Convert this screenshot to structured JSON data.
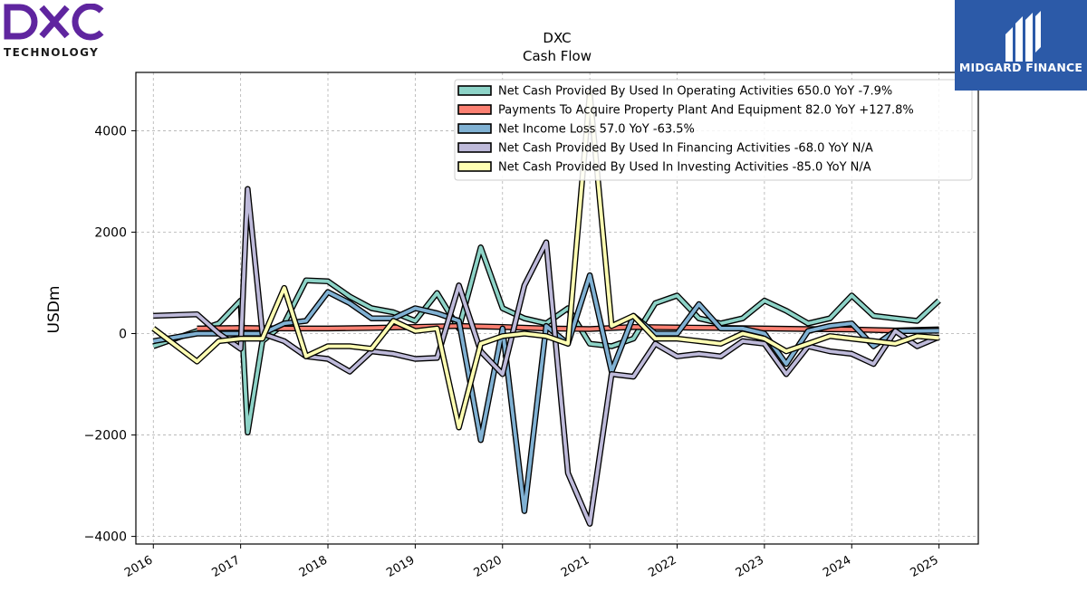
{
  "brand": {
    "company_logo_name": "DXC",
    "company_logo_sub": "TECHNOLOGY",
    "company_logo_color": "#5f259f",
    "watermark_name": "MIDGARD FINANCE",
    "watermark_color": "#2c5aa8"
  },
  "chart_data": {
    "type": "line",
    "title": "DXC",
    "subtitle": "Cash Flow",
    "xlabel": "",
    "ylabel": "USDm",
    "xlim": [
      2015.8,
      2025.45
    ],
    "ylim": [
      -4150,
      5150
    ],
    "x_ticks": [
      2016,
      2017,
      2018,
      2019,
      2020,
      2021,
      2022,
      2023,
      2024,
      2025
    ],
    "x_tick_labels": [
      "2016",
      "2017",
      "2018",
      "2019",
      "2020",
      "2021",
      "2022",
      "2023",
      "2024",
      "2025"
    ],
    "y_ticks": [
      -4000,
      -2000,
      0,
      2000,
      4000
    ],
    "y_tick_labels": [
      "−4000",
      "−2000",
      "0",
      "2000",
      "4000"
    ],
    "grid": true,
    "legend_position": "top-right",
    "series": [
      {
        "name": "Net Cash Provided By Used In Operating Activities  650.0 YoY -7.9%",
        "color": "#8dd3c7",
        "points": [
          [
            2016.0,
            -250
          ],
          [
            2016.5,
            50
          ],
          [
            2016.75,
            200
          ],
          [
            2017.0,
            650
          ],
          [
            2017.08,
            -1950
          ],
          [
            2017.25,
            -150
          ],
          [
            2017.5,
            200
          ],
          [
            2017.75,
            1050
          ],
          [
            2018.0,
            1030
          ],
          [
            2018.25,
            730
          ],
          [
            2018.5,
            500
          ],
          [
            2018.75,
            420
          ],
          [
            2019.0,
            250
          ],
          [
            2019.25,
            800
          ],
          [
            2019.5,
            100
          ],
          [
            2019.75,
            1700
          ],
          [
            2020.0,
            500
          ],
          [
            2020.25,
            300
          ],
          [
            2020.5,
            200
          ],
          [
            2020.75,
            500
          ],
          [
            2021.0,
            -200
          ],
          [
            2021.25,
            -250
          ],
          [
            2021.5,
            -100
          ],
          [
            2021.75,
            600
          ],
          [
            2022.0,
            750
          ],
          [
            2022.25,
            300
          ],
          [
            2022.5,
            200
          ],
          [
            2022.75,
            300
          ],
          [
            2023.0,
            650
          ],
          [
            2023.25,
            450
          ],
          [
            2023.5,
            200
          ],
          [
            2023.75,
            300
          ],
          [
            2024.0,
            750
          ],
          [
            2024.25,
            350
          ],
          [
            2024.5,
            300
          ],
          [
            2024.75,
            250
          ],
          [
            2025.0,
            650
          ]
        ]
      },
      {
        "name": "Payments To Acquire Property Plant And Equipment  82.0 YoY +127.8%",
        "color": "#fb8072",
        "points": [
          [
            2016.5,
            100
          ],
          [
            2017.0,
            110
          ],
          [
            2017.5,
            100
          ],
          [
            2018.0,
            100
          ],
          [
            2018.5,
            110
          ],
          [
            2019.0,
            130
          ],
          [
            2019.5,
            150
          ],
          [
            2020.0,
            130
          ],
          [
            2020.5,
            100
          ],
          [
            2021.0,
            90
          ],
          [
            2021.5,
            130
          ],
          [
            2022.0,
            120
          ],
          [
            2022.5,
            110
          ],
          [
            2023.0,
            100
          ],
          [
            2023.5,
            90
          ],
          [
            2024.0,
            80
          ],
          [
            2024.5,
            60
          ],
          [
            2025.0,
            82
          ]
        ]
      },
      {
        "name": "Net Income Loss  57.0 YoY -63.5%",
        "color": "#80b1d3",
        "points": [
          [
            2016.0,
            -150
          ],
          [
            2016.5,
            0
          ],
          [
            2016.75,
            0
          ],
          [
            2017.0,
            0
          ],
          [
            2017.25,
            0
          ],
          [
            2017.5,
            200
          ],
          [
            2017.75,
            250
          ],
          [
            2018.0,
            820
          ],
          [
            2018.25,
            600
          ],
          [
            2018.5,
            300
          ],
          [
            2018.75,
            300
          ],
          [
            2019.0,
            500
          ],
          [
            2019.25,
            400
          ],
          [
            2019.5,
            250
          ],
          [
            2019.75,
            -2100
          ],
          [
            2020.0,
            100
          ],
          [
            2020.25,
            -3500
          ],
          [
            2020.5,
            150
          ],
          [
            2020.75,
            -200
          ],
          [
            2021.0,
            1150
          ],
          [
            2021.25,
            -750
          ],
          [
            2021.5,
            350
          ],
          [
            2021.75,
            0
          ],
          [
            2022.0,
            0
          ],
          [
            2022.25,
            580
          ],
          [
            2022.5,
            100
          ],
          [
            2022.75,
            100
          ],
          [
            2023.0,
            0
          ],
          [
            2023.25,
            -600
          ],
          [
            2023.5,
            50
          ],
          [
            2023.75,
            150
          ],
          [
            2024.0,
            200
          ],
          [
            2024.25,
            -250
          ],
          [
            2024.5,
            50
          ],
          [
            2024.75,
            50
          ],
          [
            2025.0,
            57
          ]
        ]
      },
      {
        "name": "Net Cash Provided By Used In Financing Activities  -68.0 YoY N/A",
        "color": "#bebada",
        "points": [
          [
            2016.0,
            350
          ],
          [
            2016.5,
            380
          ],
          [
            2016.75,
            0
          ],
          [
            2017.0,
            -300
          ],
          [
            2017.08,
            2850
          ],
          [
            2017.25,
            0
          ],
          [
            2017.5,
            -150
          ],
          [
            2017.75,
            -450
          ],
          [
            2018.0,
            -500
          ],
          [
            2018.25,
            -750
          ],
          [
            2018.5,
            -350
          ],
          [
            2018.75,
            -400
          ],
          [
            2019.0,
            -500
          ],
          [
            2019.25,
            -480
          ],
          [
            2019.5,
            950
          ],
          [
            2019.75,
            -350
          ],
          [
            2020.0,
            -800
          ],
          [
            2020.25,
            950
          ],
          [
            2020.5,
            1800
          ],
          [
            2020.75,
            -2750
          ],
          [
            2021.0,
            -3750
          ],
          [
            2021.25,
            -800
          ],
          [
            2021.5,
            -850
          ],
          [
            2021.75,
            -200
          ],
          [
            2022.0,
            -450
          ],
          [
            2022.25,
            -400
          ],
          [
            2022.5,
            -450
          ],
          [
            2022.75,
            -150
          ],
          [
            2023.0,
            -200
          ],
          [
            2023.25,
            -800
          ],
          [
            2023.5,
            -250
          ],
          [
            2023.75,
            -350
          ],
          [
            2024.0,
            -400
          ],
          [
            2024.25,
            -600
          ],
          [
            2024.5,
            50
          ],
          [
            2024.75,
            -250
          ],
          [
            2025.0,
            -68
          ]
        ]
      },
      {
        "name": "Net Cash Provided By Used In Investing Activities  -85.0 YoY N/A",
        "color": "#ffffb3",
        "points": [
          [
            2016.0,
            100
          ],
          [
            2016.5,
            -550
          ],
          [
            2016.75,
            -150
          ],
          [
            2017.0,
            -100
          ],
          [
            2017.25,
            -100
          ],
          [
            2017.5,
            900
          ],
          [
            2017.75,
            -450
          ],
          [
            2018.0,
            -250
          ],
          [
            2018.25,
            -250
          ],
          [
            2018.5,
            -300
          ],
          [
            2018.75,
            250
          ],
          [
            2019.0,
            50
          ],
          [
            2019.25,
            100
          ],
          [
            2019.5,
            -1850
          ],
          [
            2019.75,
            -200
          ],
          [
            2020.0,
            -50
          ],
          [
            2020.25,
            0
          ],
          [
            2020.5,
            -50
          ],
          [
            2020.75,
            -200
          ],
          [
            2021.0,
            4750
          ],
          [
            2021.25,
            150
          ],
          [
            2021.5,
            350
          ],
          [
            2021.75,
            -100
          ],
          [
            2022.0,
            -100
          ],
          [
            2022.25,
            -150
          ],
          [
            2022.5,
            -200
          ],
          [
            2022.75,
            0
          ],
          [
            2023.0,
            -100
          ],
          [
            2023.25,
            -350
          ],
          [
            2023.5,
            -200
          ],
          [
            2023.75,
            -50
          ],
          [
            2024.0,
            -100
          ],
          [
            2024.25,
            -150
          ],
          [
            2024.5,
            -200
          ],
          [
            2024.75,
            -50
          ],
          [
            2025.0,
            -85
          ]
        ]
      }
    ]
  }
}
